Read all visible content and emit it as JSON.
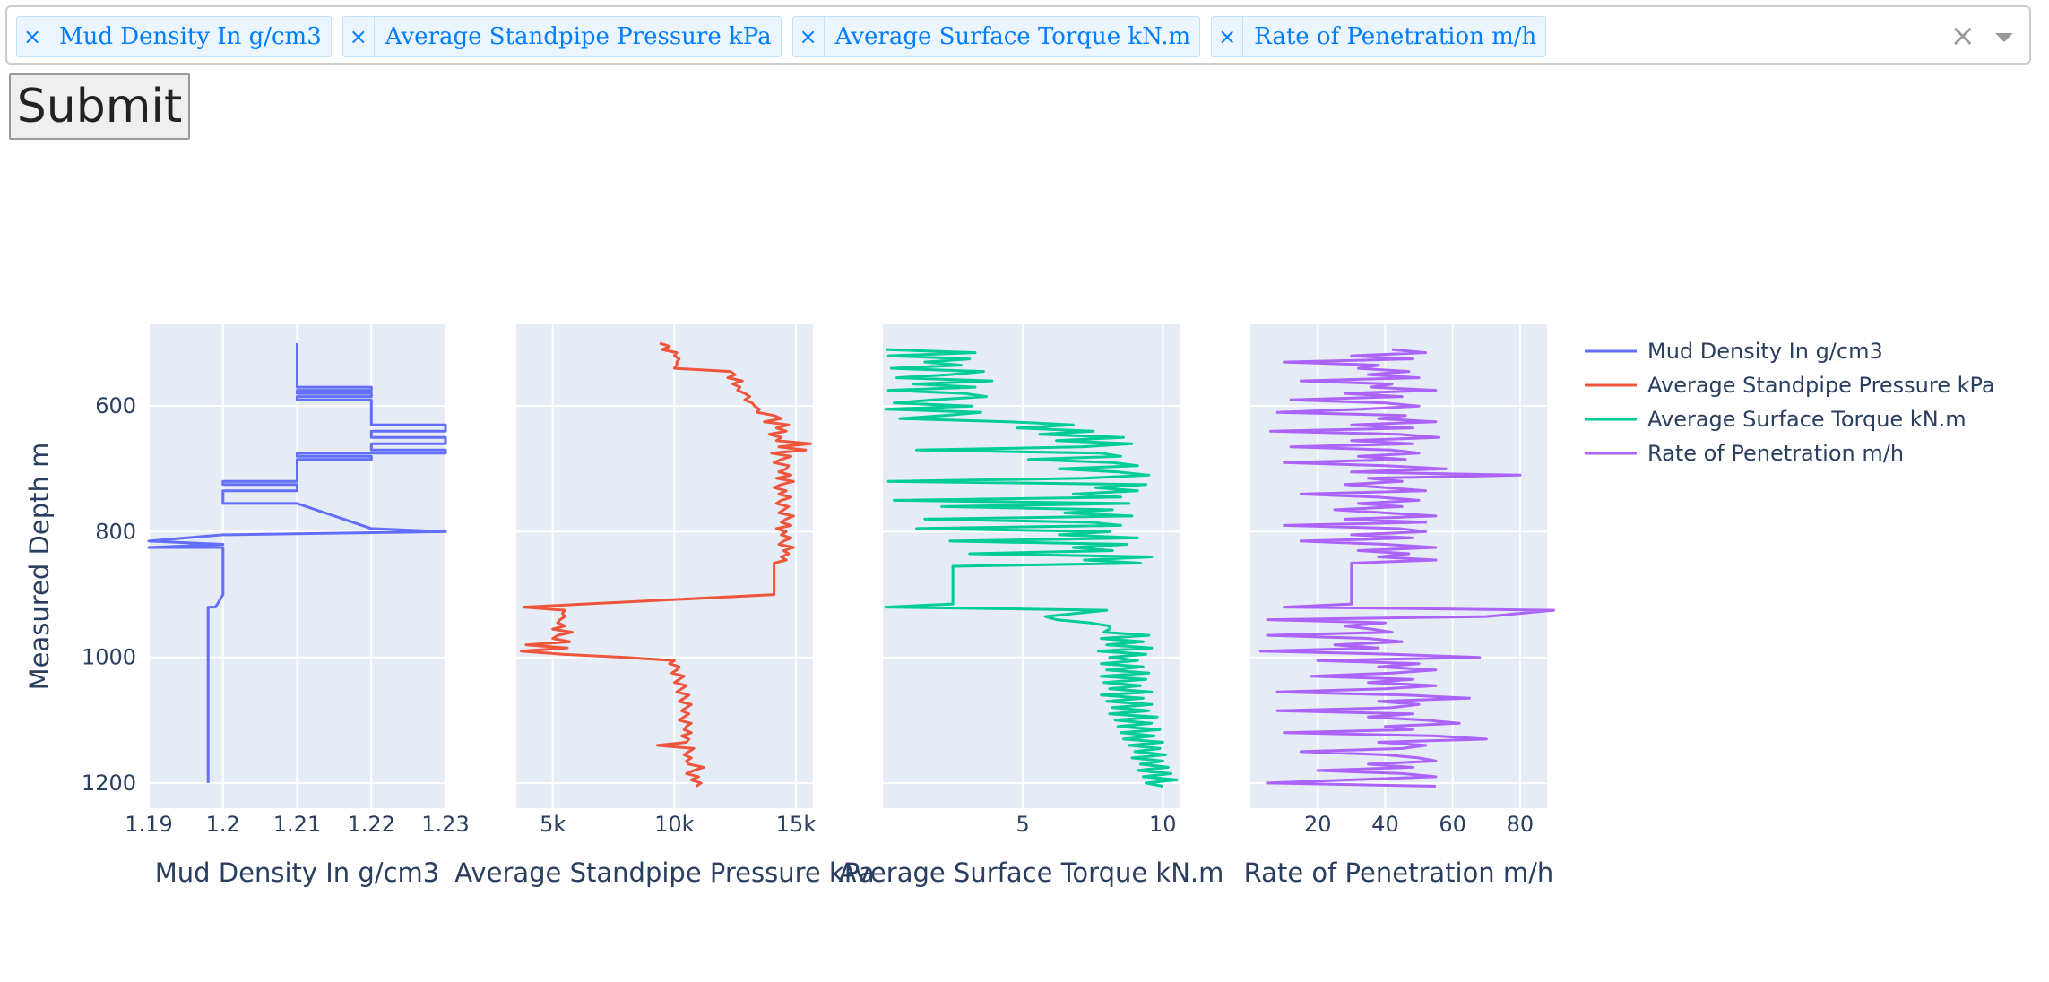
{
  "selector": {
    "chips": [
      {
        "label": "Mud Density In g/cm3",
        "remove": "×"
      },
      {
        "label": "Average Standpipe Pressure kPa",
        "remove": "×"
      },
      {
        "label": "Average Surface Torque kN.m",
        "remove": "×"
      },
      {
        "label": "Rate of Penetration m/h",
        "remove": "×"
      }
    ],
    "clear_icon": "×",
    "dropdown_icon": "chevron-down-icon"
  },
  "submit_label": "Submit",
  "chart_data": {
    "type": "line",
    "ylabel": "Measured Depth m",
    "yrange": [
      1240,
      470
    ],
    "y_ticks": [
      600,
      800,
      1000,
      1200
    ],
    "grid": true,
    "legend_position": "top-right",
    "colors": {
      "plot_bg": "#e5ecf6",
      "grid": "#ffffff",
      "text": "#2a3f5f"
    },
    "series": [
      {
        "name": "Mud Density In g/cm3",
        "xlabel": "Mud Density In g/cm3",
        "color": "#636efa",
        "xrange": [
          1.19,
          1.23
        ],
        "x_ticks": [
          1.19,
          1.2,
          1.21,
          1.22,
          1.23
        ],
        "x_tick_labels": [
          "1.19",
          "1.2",
          "1.21",
          "1.22",
          "1.23"
        ],
        "depth": [
          500,
          570,
          570,
          575,
          575,
          580,
          580,
          585,
          585,
          590,
          590,
          595,
          595,
          630,
          630,
          640,
          640,
          650,
          650,
          660,
          660,
          670,
          670,
          675,
          675,
          680,
          680,
          685,
          685,
          690,
          690,
          720,
          720,
          725,
          725,
          735,
          735,
          755,
          755,
          795,
          795,
          800,
          800,
          805,
          805,
          815,
          815,
          820,
          820,
          825,
          825,
          900,
          900,
          920,
          920,
          1200
        ],
        "values": [
          1.21,
          1.21,
          1.22,
          1.22,
          1.21,
          1.21,
          1.22,
          1.22,
          1.21,
          1.21,
          1.22,
          1.22,
          1.22,
          1.22,
          1.23,
          1.23,
          1.22,
          1.22,
          1.23,
          1.23,
          1.22,
          1.22,
          1.23,
          1.23,
          1.21,
          1.21,
          1.22,
          1.22,
          1.21,
          1.21,
          1.21,
          1.21,
          1.2,
          1.2,
          1.21,
          1.21,
          1.2,
          1.2,
          1.21,
          1.22,
          1.22,
          1.23,
          1.23,
          1.2,
          1.2,
          1.19,
          1.19,
          1.2,
          1.2,
          1.19,
          1.2,
          1.2,
          1.2,
          1.199,
          1.198,
          1.198
        ]
      },
      {
        "name": "Average Standpipe Pressure kPa",
        "xlabel": "Average Standpipe Pressure kPa",
        "color": "#ef553b",
        "xrange": [
          3500,
          15700
        ],
        "x_ticks": [
          5000,
          10000,
          15000
        ],
        "x_tick_labels": [
          "5k",
          "10k",
          "15k"
        ],
        "depth": [
          500,
          505,
          510,
          515,
          520,
          525,
          530,
          535,
          540,
          545,
          550,
          555,
          560,
          565,
          570,
          575,
          580,
          585,
          590,
          595,
          600,
          605,
          610,
          615,
          620,
          625,
          630,
          635,
          640,
          645,
          650,
          655,
          660,
          665,
          670,
          675,
          680,
          685,
          690,
          695,
          700,
          705,
          710,
          715,
          720,
          725,
          730,
          735,
          740,
          745,
          750,
          755,
          760,
          765,
          770,
          775,
          780,
          785,
          790,
          795,
          800,
          805,
          810,
          815,
          820,
          825,
          830,
          835,
          840,
          845,
          850,
          900,
          920,
          925,
          930,
          935,
          940,
          945,
          950,
          955,
          960,
          965,
          970,
          975,
          980,
          985,
          990,
          995,
          1000,
          1005,
          1010,
          1015,
          1020,
          1025,
          1030,
          1035,
          1040,
          1045,
          1050,
          1055,
          1060,
          1065,
          1070,
          1075,
          1080,
          1085,
          1090,
          1095,
          1100,
          1105,
          1110,
          1115,
          1120,
          1125,
          1130,
          1135,
          1140,
          1145,
          1150,
          1155,
          1160,
          1165,
          1170,
          1175,
          1180,
          1185,
          1190,
          1195,
          1200,
          1205
        ],
        "values": [
          9400,
          9800,
          9500,
          10100,
          10000,
          10200,
          10100,
          10100,
          10000,
          12300,
          12500,
          12200,
          12800,
          12400,
          12700,
          12600,
          12900,
          13100,
          12900,
          13200,
          13300,
          13500,
          13400,
          14100,
          14400,
          13700,
          14700,
          14200,
          14600,
          13900,
          14400,
          14200,
          15600,
          14300,
          15400,
          14000,
          14800,
          14400,
          14100,
          14700,
          14600,
          14300,
          14800,
          14200,
          14900,
          14400,
          14100,
          14600,
          14300,
          14800,
          14400,
          14200,
          14700,
          14500,
          14300,
          14900,
          14600,
          14400,
          14800,
          14200,
          14600,
          14400,
          14800,
          14500,
          14300,
          14900,
          14500,
          14700,
          14400,
          14600,
          14100,
          14100,
          3800,
          5500,
          5400,
          5500,
          5300,
          5200,
          5500,
          5000,
          5800,
          5200,
          5000,
          5700,
          3900,
          5600,
          3700,
          5400,
          8000,
          10000,
          9800,
          10200,
          10100,
          9900,
          10400,
          10200,
          10000,
          10500,
          10300,
          10100,
          10600,
          10400,
          10200,
          10700,
          10500,
          10300,
          10600,
          10400,
          10200,
          10700,
          10500,
          10400,
          10700,
          10300,
          10600,
          10500,
          9300,
          10800,
          10600,
          10400,
          10700,
          10500,
          10600,
          11200,
          10800,
          10500,
          11000,
          10700,
          11100,
          10900
        ]
      },
      {
        "name": "Average Surface Torque kN.m",
        "xlabel": "Average Surface Torque kN.m",
        "color": "#00cc96",
        "xrange": [
          0,
          10.6
        ],
        "x_ticks": [
          5,
          10
        ],
        "x_tick_labels": [
          "5",
          "10"
        ],
        "depth": [
          510,
          515,
          520,
          525,
          530,
          535,
          540,
          545,
          550,
          555,
          560,
          565,
          570,
          575,
          580,
          585,
          590,
          595,
          600,
          605,
          610,
          615,
          620,
          625,
          630,
          635,
          640,
          645,
          650,
          655,
          660,
          665,
          670,
          675,
          680,
          685,
          690,
          695,
          700,
          705,
          710,
          715,
          720,
          725,
          730,
          735,
          740,
          745,
          750,
          755,
          760,
          765,
          770,
          775,
          780,
          785,
          790,
          795,
          800,
          805,
          810,
          815,
          820,
          825,
          830,
          835,
          840,
          845,
          850,
          855,
          860,
          865,
          870,
          875,
          880,
          885,
          890,
          895,
          900,
          905,
          910,
          915,
          920,
          925,
          935,
          940,
          945,
          950,
          955,
          960,
          965,
          970,
          975,
          980,
          985,
          990,
          995,
          1000,
          1005,
          1010,
          1015,
          1020,
          1025,
          1030,
          1035,
          1040,
          1045,
          1050,
          1055,
          1060,
          1065,
          1070,
          1075,
          1080,
          1085,
          1090,
          1095,
          1100,
          1105,
          1110,
          1115,
          1120,
          1125,
          1130,
          1135,
          1140,
          1145,
          1150,
          1155,
          1160,
          1165,
          1170,
          1175,
          1180,
          1185,
          1190,
          1195,
          1200,
          1205
        ],
        "values": [
          0.1,
          3.3,
          0.2,
          3.1,
          1.5,
          2.8,
          0.3,
          3.6,
          2.4,
          0.5,
          3.9,
          1.1,
          3.3,
          0.2,
          2.9,
          3.7,
          1.8,
          0.4,
          3.2,
          0.1,
          3.5,
          2.2,
          0.6,
          4.5,
          6.8,
          4.8,
          7.5,
          5.6,
          8.6,
          6.2,
          8.9,
          7.1,
          1.2,
          7.8,
          8.5,
          5.2,
          8.2,
          9.1,
          6.3,
          8.4,
          9.5,
          7.2,
          0.2,
          9.4,
          7.6,
          9.1,
          6.8,
          8.5,
          0.4,
          8.8,
          2.1,
          8.2,
          6.5,
          8.9,
          1.5,
          7.4,
          8.5,
          1.2,
          8.1,
          6.3,
          9.1,
          2.4,
          8.7,
          6.8,
          8.2,
          3.1,
          9.6,
          7.2,
          9.2,
          2.5,
          2.5,
          2.5,
          2.5,
          2.5,
          2.5,
          2.5,
          2.5,
          2.5,
          2.5,
          2.5,
          2.5,
          2.5,
          0.1,
          8.0,
          5.8,
          6.2,
          7.4,
          8.1,
          8.1,
          7.9,
          9.5,
          7.8,
          9.3,
          8.0,
          9.6,
          7.7,
          9.4,
          8.1,
          9.1,
          7.8,
          9.3,
          8.0,
          9.5,
          7.8,
          9.4,
          7.9,
          9.2,
          8.1,
          9.6,
          7.8,
          9.3,
          8.0,
          9.6,
          8.2,
          9.5,
          8.1,
          9.8,
          8.3,
          9.6,
          8.4,
          9.9,
          8.5,
          9.7,
          8.6,
          10.0,
          8.8,
          9.9,
          9.0,
          10.1,
          8.9,
          10.0,
          9.2,
          10.2,
          9.1,
          10.3,
          9.3,
          10.5,
          9.4,
          10.0
        ]
      },
      {
        "name": "Rate of Penetration m/h",
        "xlabel": "Rate of Penetration m/h",
        "color": "#ab63fa",
        "xrange": [
          0,
          88
        ],
        "x_ticks": [
          20,
          40,
          60,
          80
        ],
        "x_tick_labels": [
          "20",
          "40",
          "60",
          "80"
        ],
        "depth": [
          510,
          515,
          520,
          525,
          530,
          535,
          540,
          545,
          550,
          555,
          560,
          565,
          570,
          575,
          580,
          585,
          590,
          595,
          600,
          605,
          610,
          615,
          620,
          625,
          630,
          635,
          640,
          645,
          650,
          655,
          660,
          665,
          670,
          675,
          680,
          685,
          690,
          695,
          700,
          705,
          710,
          715,
          720,
          725,
          730,
          735,
          740,
          745,
          750,
          755,
          760,
          765,
          770,
          775,
          780,
          785,
          790,
          795,
          800,
          805,
          810,
          815,
          820,
          825,
          830,
          835,
          840,
          845,
          850,
          855,
          860,
          865,
          870,
          875,
          880,
          885,
          890,
          895,
          900,
          905,
          910,
          915,
          920,
          925,
          935,
          940,
          945,
          950,
          955,
          960,
          965,
          970,
          975,
          980,
          985,
          990,
          995,
          1000,
          1005,
          1010,
          1015,
          1020,
          1025,
          1030,
          1035,
          1040,
          1045,
          1050,
          1055,
          1060,
          1065,
          1070,
          1075,
          1080,
          1085,
          1090,
          1095,
          1100,
          1105,
          1110,
          1115,
          1120,
          1125,
          1130,
          1135,
          1140,
          1145,
          1150,
          1155,
          1160,
          1165,
          1170,
          1175,
          1180,
          1185,
          1190,
          1195,
          1200,
          1205
        ],
        "values": [
          42,
          52,
          30,
          48,
          10,
          38,
          32,
          47,
          35,
          50,
          15,
          42,
          36,
          55,
          28,
          45,
          12,
          40,
          50,
          33,
          8,
          46,
          38,
          55,
          30,
          48,
          6,
          44,
          56,
          30,
          48,
          12,
          42,
          50,
          32,
          46,
          10,
          40,
          58,
          30,
          80,
          35,
          45,
          28,
          40,
          52,
          15,
          38,
          50,
          32,
          45,
          25,
          40,
          55,
          28,
          52,
          10,
          44,
          52,
          30,
          48,
          15,
          40,
          55,
          32,
          47,
          38,
          55,
          30,
          30,
          30,
          30,
          30,
          30,
          30,
          30,
          30,
          30,
          30,
          30,
          30,
          30,
          10,
          90,
          70,
          5,
          40,
          28,
          36,
          42,
          5,
          35,
          45,
          25,
          38,
          3,
          42,
          68,
          20,
          50,
          38,
          55,
          42,
          18,
          48,
          35,
          55,
          40,
          8,
          46,
          65,
          38,
          50,
          42,
          8,
          48,
          35,
          52,
          62,
          40,
          48,
          10,
          55,
          70,
          38,
          52,
          45,
          15,
          40,
          50,
          55,
          35,
          48,
          20,
          45,
          55,
          30,
          5,
          55
        ]
      }
    ]
  }
}
